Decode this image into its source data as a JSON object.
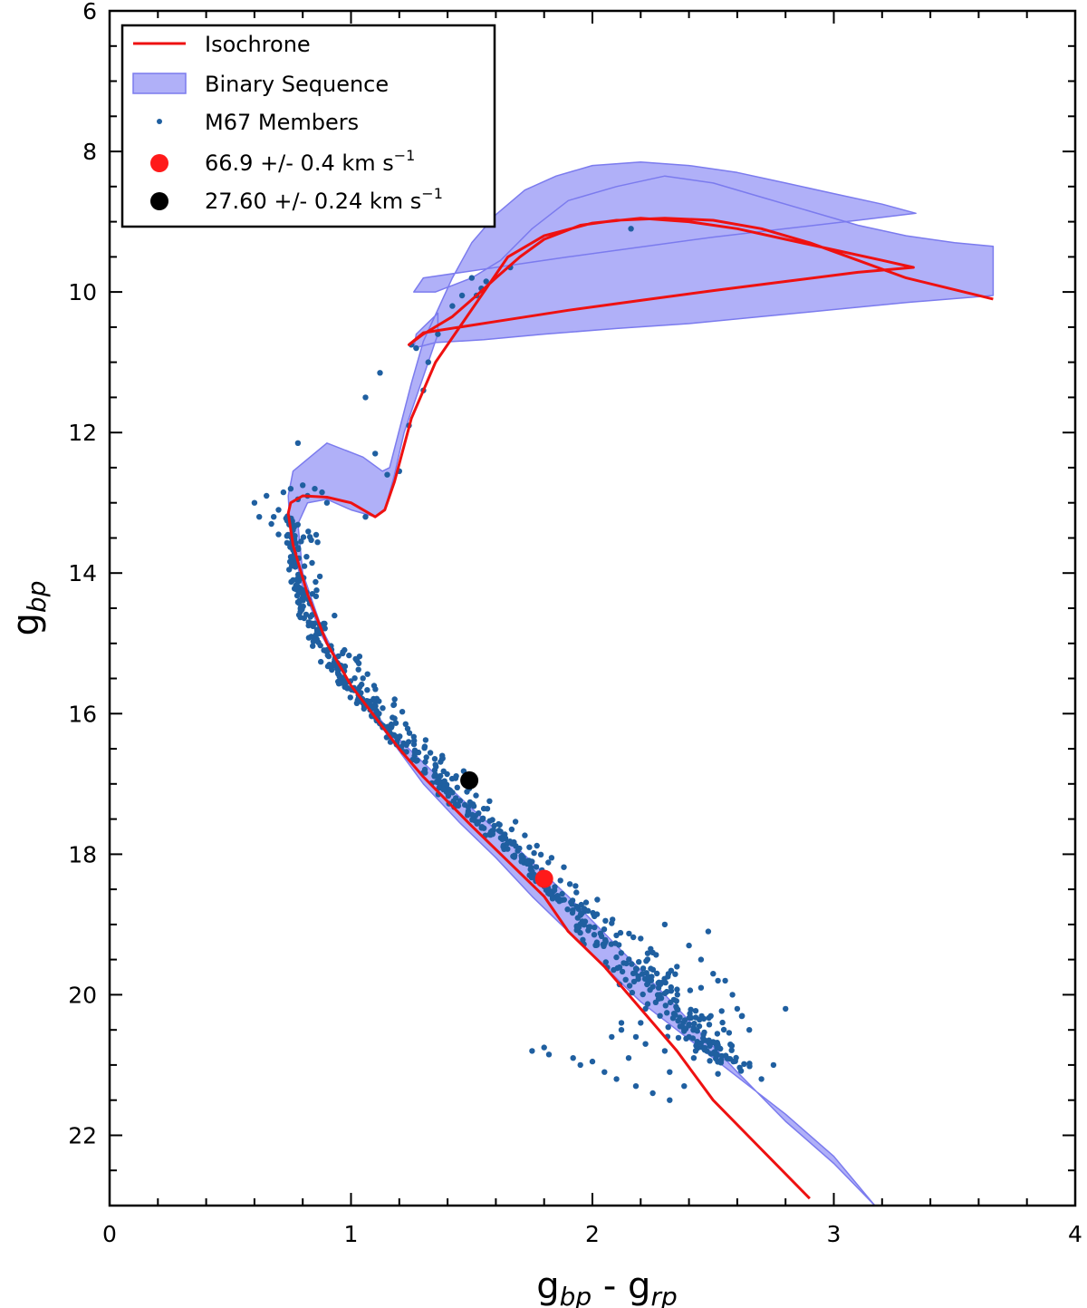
{
  "chart_data": {
    "type": "scatter",
    "xlabel": {
      "base": "g",
      "sub1": "bp",
      "mid": " - g",
      "sub2": "rp"
    },
    "ylabel": {
      "base": "g",
      "sub": "bp"
    },
    "xlim": [
      0,
      4
    ],
    "ylim": [
      23,
      6
    ],
    "y_inverted": true,
    "x_ticks": [
      0,
      1,
      2,
      3,
      4
    ],
    "y_ticks": [
      6,
      8,
      10,
      12,
      14,
      16,
      18,
      20,
      22
    ],
    "legend_position": "top-left",
    "legend": [
      {
        "name": "Isochrone",
        "kind": "line",
        "color": "#ee1111"
      },
      {
        "name": "Binary Sequence",
        "kind": "band",
        "color": "#7b7bee"
      },
      {
        "name": "M67 Members",
        "kind": "point",
        "color": "#1f5fa0"
      },
      {
        "name": "66.9 +/- 0.4 km s",
        "sup": "−1",
        "kind": "marker",
        "color": "#ff1a1a"
      },
      {
        "name": "27.60 +/- 0.24 km s",
        "sup": "−1",
        "kind": "marker",
        "color": "#000000"
      }
    ],
    "isochrone": {
      "color": "#ee1111",
      "x": [
        2.9,
        2.7,
        2.5,
        2.35,
        2.2,
        2.05,
        1.9,
        1.8,
        1.65,
        1.5,
        1.4,
        1.3,
        1.2,
        1.1,
        1.0,
        0.9,
        0.82,
        0.76,
        0.74,
        0.75,
        0.8,
        0.9,
        1.0,
        1.1,
        1.14,
        1.18,
        1.25,
        1.35,
        1.45,
        1.55,
        1.65,
        1.8,
        2.0,
        2.2,
        2.4,
        2.6,
        2.8,
        3.0,
        3.2,
        3.33,
        3.1,
        2.8,
        2.5,
        2.2,
        1.9,
        1.6,
        1.3,
        1.24,
        1.3,
        1.42,
        1.52,
        1.6,
        1.7,
        1.8,
        1.95,
        2.1,
        2.3,
        2.5,
        2.7,
        2.9,
        3.1,
        3.3,
        3.66
      ],
      "y": [
        22.9,
        22.2,
        21.5,
        20.8,
        20.2,
        19.6,
        19.1,
        18.6,
        18.1,
        17.6,
        17.25,
        16.9,
        16.5,
        16.05,
        15.6,
        15.0,
        14.3,
        13.6,
        13.15,
        13.0,
        12.9,
        12.92,
        13.0,
        13.2,
        13.1,
        12.7,
        11.8,
        11.0,
        10.5,
        10.0,
        9.5,
        9.2,
        9.02,
        8.95,
        9.0,
        9.1,
        9.25,
        9.4,
        9.55,
        9.65,
        9.72,
        9.85,
        9.98,
        10.12,
        10.26,
        10.42,
        10.58,
        10.75,
        10.6,
        10.35,
        10.05,
        9.8,
        9.5,
        9.25,
        9.05,
        8.98,
        8.95,
        8.98,
        9.1,
        9.3,
        9.55,
        9.8,
        10.1
      ]
    },
    "binary_band": {
      "color": "#7b7bee",
      "upper": {
        "x": [
          3.17,
          3.0,
          2.8,
          2.6,
          2.45,
          2.3,
          2.1,
          1.9,
          1.7,
          1.5,
          1.3,
          1.15,
          1.0,
          0.88,
          0.8,
          0.75,
          0.74,
          0.76,
          0.9,
          1.05,
          1.13,
          1.16,
          1.25,
          1.3,
          1.36,
          1.42,
          1.5,
          1.6,
          1.72,
          1.85,
          2.0,
          2.2,
          2.4,
          2.6,
          2.8,
          3.0,
          3.2,
          3.34,
          3.1,
          2.8,
          2.5,
          2.2,
          1.9,
          1.6,
          1.3,
          1.26,
          1.35,
          1.5,
          1.62,
          1.75,
          1.9,
          2.1,
          2.3,
          2.5,
          2.7,
          2.9,
          3.1,
          3.3,
          3.5,
          3.66
        ],
        "y": [
          23.0,
          22.4,
          21.8,
          21.1,
          20.55,
          20.0,
          19.3,
          18.6,
          17.95,
          17.35,
          16.7,
          16.2,
          15.6,
          14.9,
          14.2,
          13.5,
          12.9,
          12.55,
          12.15,
          12.35,
          12.55,
          12.5,
          11.3,
          10.7,
          10.25,
          9.8,
          9.3,
          8.9,
          8.55,
          8.35,
          8.2,
          8.15,
          8.2,
          8.3,
          8.45,
          8.6,
          8.75,
          8.88,
          8.98,
          9.1,
          9.22,
          9.36,
          9.5,
          9.65,
          9.8,
          10.0,
          10.0,
          9.8,
          9.55,
          9.1,
          8.7,
          8.5,
          8.35,
          8.45,
          8.65,
          8.85,
          9.05,
          9.2,
          9.3,
          9.35
        ]
      },
      "lower": {
        "x": [
          3.66,
          3.3,
          3.0,
          2.7,
          2.4,
          2.1,
          1.8,
          1.55,
          1.35,
          1.26,
          1.27,
          1.3,
          1.36,
          1.36,
          1.3,
          1.22,
          1.18,
          1.14,
          1.1,
          1.0,
          0.9,
          0.82,
          0.78,
          0.8,
          0.88,
          1.0,
          1.15,
          1.3,
          1.45,
          1.6,
          1.75,
          1.9,
          2.05,
          2.2,
          2.35,
          2.5,
          2.65,
          2.8,
          3.0,
          3.17
        ],
        "y": [
          10.05,
          10.15,
          10.25,
          10.35,
          10.45,
          10.52,
          10.6,
          10.68,
          10.72,
          10.8,
          10.6,
          10.5,
          10.3,
          10.6,
          11.2,
          12.0,
          12.6,
          13.1,
          13.2,
          13.1,
          12.95,
          13.0,
          13.3,
          14.0,
          14.8,
          15.6,
          16.3,
          17.0,
          17.55,
          18.05,
          18.6,
          19.1,
          19.6,
          20.1,
          20.5,
          20.9,
          21.3,
          21.7,
          22.3,
          23.0
        ]
      }
    },
    "members": {
      "color": "#1f5fa0",
      "sequence": {
        "x": [
          0.74,
          0.75,
          0.78,
          0.85,
          0.95,
          1.05,
          1.15,
          1.3,
          1.45,
          1.6,
          1.75,
          1.9,
          2.05,
          2.2,
          2.35,
          2.45,
          2.55
        ],
        "y": [
          13.2,
          13.8,
          14.4,
          15.0,
          15.5,
          15.9,
          16.3,
          16.8,
          17.3,
          17.8,
          18.3,
          18.8,
          19.3,
          19.8,
          20.3,
          20.7,
          21.1
        ]
      },
      "turnoff": {
        "x": [
          0.6,
          0.62,
          0.65,
          0.67,
          0.7,
          0.72,
          0.75,
          0.78,
          0.8,
          0.82,
          0.85,
          0.88,
          0.9,
          0.7,
          0.68
        ],
        "y": [
          13.0,
          13.2,
          12.9,
          13.3,
          13.1,
          12.85,
          12.8,
          12.95,
          12.75,
          12.9,
          12.8,
          12.85,
          13.0,
          13.45,
          13.2
        ]
      },
      "subgiant": {
        "x": [
          0.78,
          1.06,
          1.12,
          1.1,
          1.15,
          1.2,
          1.24,
          1.25,
          1.27,
          1.3,
          1.32,
          1.36,
          1.42,
          1.46,
          1.5,
          1.52,
          1.54,
          1.56,
          1.66,
          2.16,
          1.06
        ],
        "y": [
          12.15,
          11.5,
          11.15,
          12.3,
          12.6,
          12.55,
          11.9,
          10.75,
          10.8,
          11.4,
          11.0,
          10.6,
          10.2,
          10.05,
          9.8,
          10.05,
          9.95,
          9.85,
          9.65,
          9.1,
          13.2
        ]
      },
      "faint_spread": {
        "x": [
          1.75,
          1.8,
          1.82,
          1.92,
          1.95,
          2.0,
          2.05,
          2.08,
          2.1,
          2.12,
          2.15,
          2.18,
          2.2,
          2.22,
          2.25,
          2.28,
          2.3,
          2.32,
          2.35,
          2.38,
          2.4,
          2.42,
          2.45,
          2.5,
          2.55,
          2.6,
          2.65,
          2.7,
          2.75,
          2.8,
          2.2,
          2.25,
          2.3,
          2.35,
          2.4,
          2.45,
          2.48,
          2.52,
          2.58,
          2.62,
          2.28,
          2.22,
          2.32,
          2.18,
          2.12
        ],
        "y": [
          20.8,
          20.75,
          20.85,
          20.9,
          21.0,
          20.95,
          21.1,
          20.6,
          21.2,
          20.5,
          20.9,
          21.3,
          20.4,
          20.7,
          21.4,
          20.3,
          20.8,
          21.1,
          20.2,
          21.3,
          20.6,
          20.9,
          19.9,
          19.7,
          19.8,
          20.2,
          20.5,
          21.2,
          21.0,
          20.2,
          19.2,
          19.4,
          19.0,
          19.6,
          19.3,
          19.5,
          19.1,
          19.8,
          20.0,
          20.3,
          20.0,
          20.2,
          21.5,
          20.6,
          20.4
        ]
      }
    },
    "highlighted_stars": [
      {
        "label": "66.9 +/- 0.4 km s−1",
        "x": 1.8,
        "y": 18.35,
        "color": "#ff1a1a"
      },
      {
        "label": "27.60 +/- 0.24 km s−1",
        "x": 1.49,
        "y": 16.95,
        "color": "#000000"
      }
    ]
  }
}
